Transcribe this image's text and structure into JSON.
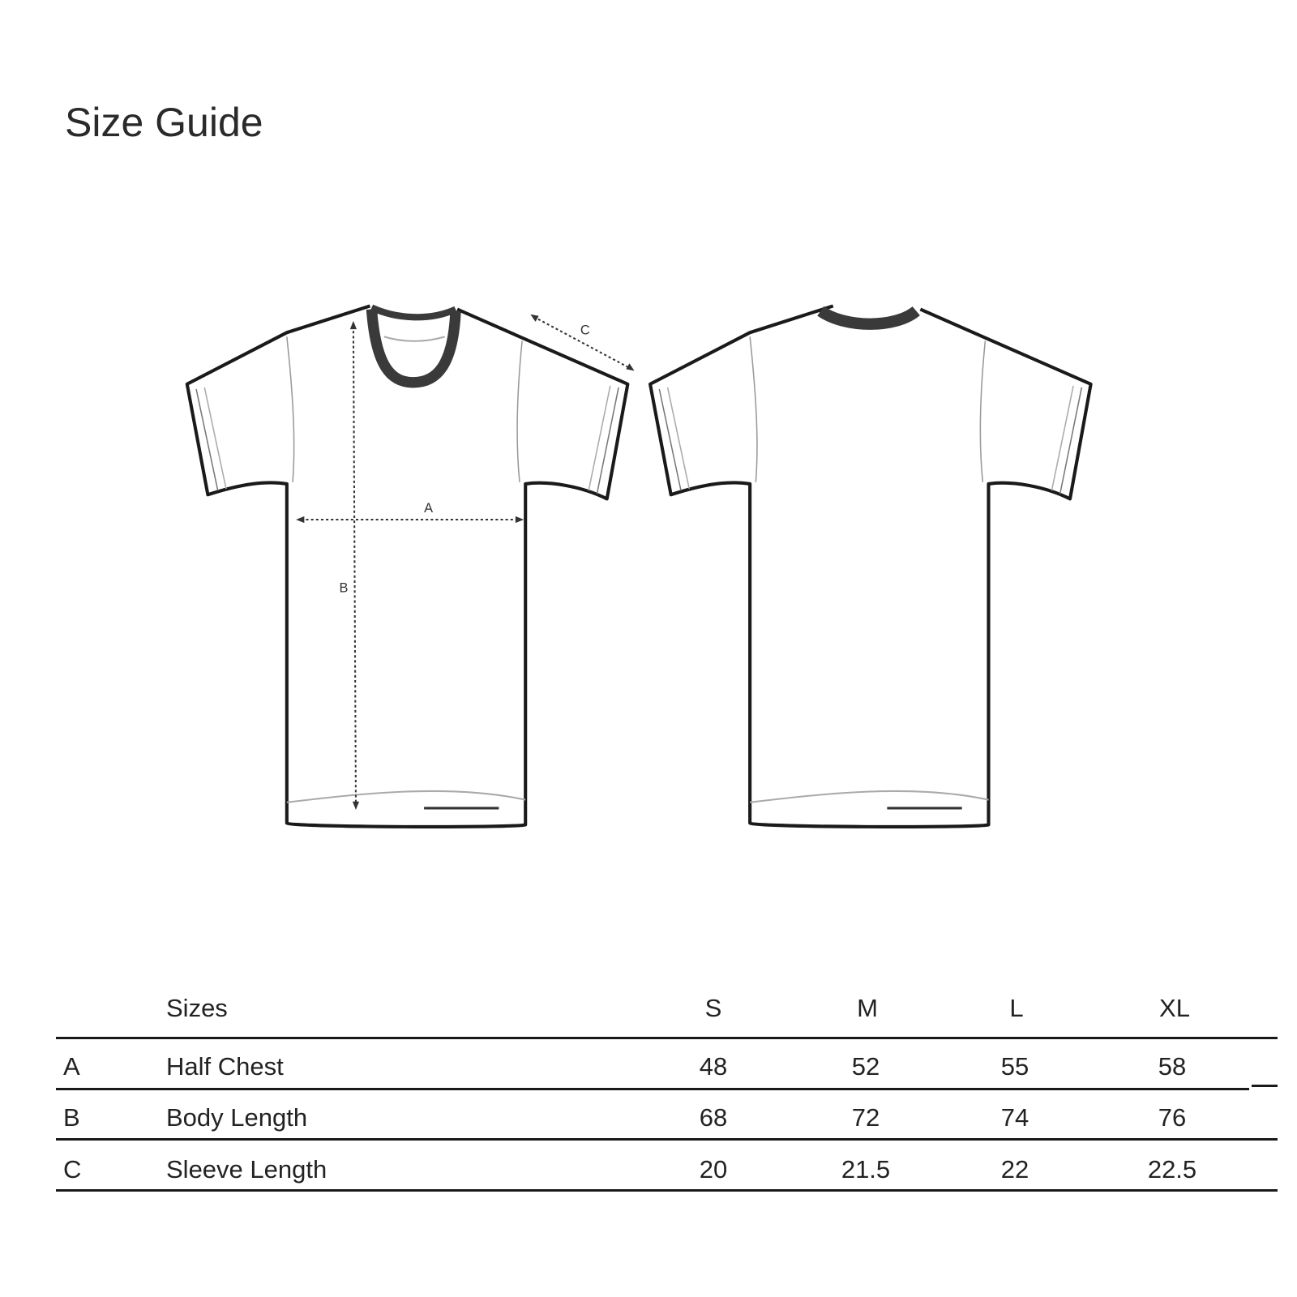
{
  "title": "Size Guide",
  "diagram": {
    "front_labels": {
      "chest": "A",
      "body": "B",
      "sleeve": "C"
    }
  },
  "table": {
    "header": {
      "label": "Sizes",
      "sizes": [
        "S",
        "M",
        "L",
        "XL"
      ]
    },
    "rows": [
      {
        "key": "A",
        "label": "Half Chest",
        "values": [
          "48",
          "52",
          "55",
          "58"
        ]
      },
      {
        "key": "B",
        "label": "Body Length",
        "values": [
          "68",
          "72",
          "74",
          "76"
        ]
      },
      {
        "key": "C",
        "label": "Sleeve Length",
        "values": [
          "20",
          "21.5",
          "22",
          "22.5"
        ]
      }
    ]
  }
}
